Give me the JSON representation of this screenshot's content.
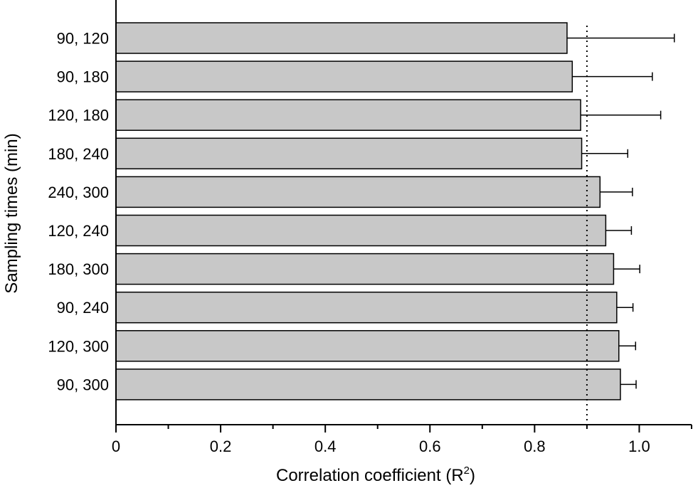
{
  "chart_data": {
    "type": "bar",
    "orientation": "horizontal",
    "categories": [
      "90, 120",
      "90, 180",
      "120, 180",
      "180, 240",
      "240, 300",
      "120, 240",
      "180, 300",
      "90, 240",
      "120, 300",
      "90, 300"
    ],
    "values": [
      0.862,
      0.872,
      0.888,
      0.89,
      0.925,
      0.936,
      0.951,
      0.957,
      0.961,
      0.964
    ],
    "error_plus": [
      0.205,
      0.153,
      0.153,
      0.088,
      0.062,
      0.049,
      0.05,
      0.031,
      0.032,
      0.03
    ],
    "xlabel": "Correlation coefficient (R",
    "xlabel_sup": "2",
    "xlabel_end": ")",
    "ylabel": "Sampling times (min)",
    "xlim": [
      0,
      1.1
    ],
    "xticks": [
      0,
      0.2,
      0.4,
      0.6,
      0.8,
      1.0
    ],
    "xtick_labels": [
      "0",
      "0.2",
      "0.4",
      "0.6",
      "0.8",
      "1.0"
    ],
    "reference_line": 0.9,
    "bar_color": "#c8c8c8",
    "grid": false,
    "legend": "none"
  }
}
